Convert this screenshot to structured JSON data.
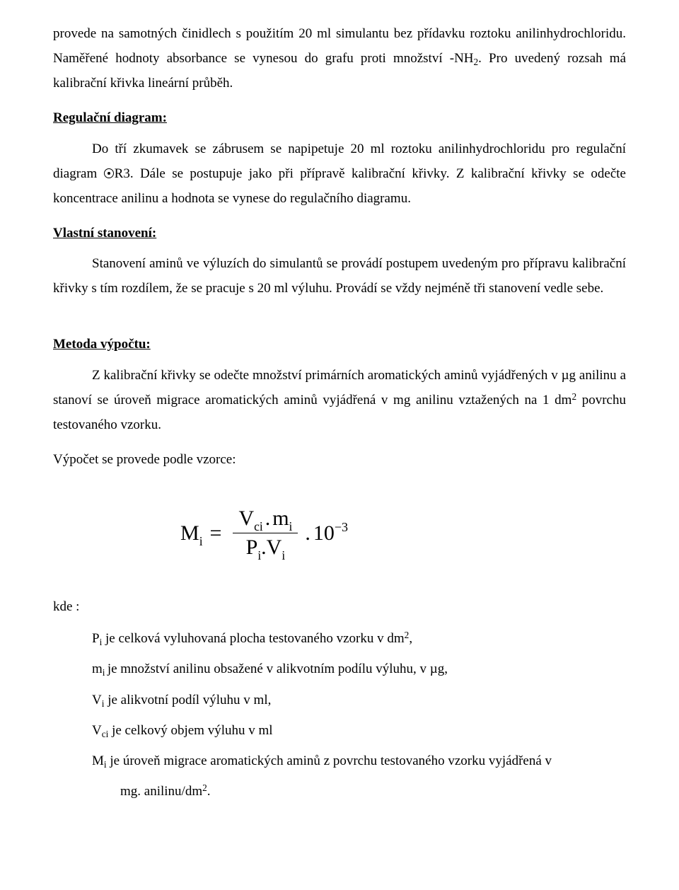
{
  "p1": "provede na samotných činidlech s použitím 20 ml simulantu bez přídavku roztoku anilinhydrochloridu. Naměřené hodnoty absorbance se vynesou do grafu proti množství -NH",
  "p1_tail": ". Pro uvedený rozsah má kalibrační křivka lineární průběh.",
  "p1_sub": "2",
  "h1": "Regulační diagram:",
  "p2a": "Do tří zkumavek se zábrusem se napipetuje 20 ml roztoku anilinhydrochloridu pro regulační diagram ",
  "p2b": "R3. Dále se postupuje jako při přípravě kalibrační křivky. Z kalibrační křivky se odečte koncentrace anilinu a hodnota se vynese do regulačního diagramu.",
  "h2": "Vlastní stanovení:",
  "p3": "Stanovení aminů ve výluzích do simulantů se provádí postupem uvedeným pro přípravu kalibrační křivky s tím rozdílem, že se pracuje s 20 ml výluhu. Provádí se vždy nejméně tři stanovení vedle sebe.",
  "h3": "Metoda výpočtu:",
  "p4a": "Z kalibrační křivky se odečte množství primárních aromatických aminů vyjádřených v µg anilinu a stanoví se úroveň migrace aromatických aminů vyjádřená v mg anilinu vztažených na 1 dm",
  "p4_sup": "2",
  "p4b": " povrchu testovaného vzorku.",
  "p5": "Výpočet  se provede podle vzorce:",
  "formula": {
    "M": "M",
    "Mi": "i",
    "eq": "=",
    "Vci": "V",
    "Vci_sub": "ci",
    "dot": ".",
    "mi": "m",
    "mi_sub": "i",
    "Pi": "P",
    "Pi_sub": "i",
    "Vi": "V",
    "Vi_sub": "i",
    "ten": "10",
    "exp": "−3"
  },
  "kde": "kde :",
  "leg1a": "P",
  "leg1s": "i",
  "leg1b": " je celková vyluhovaná plocha testovaného vzorku v dm",
  "leg1sup": "2",
  "leg1c": ",",
  "leg2a": "m",
  "leg2s": "i ",
  "leg2b": "je množství anilinu obsažené v alikvotním podílu výluhu, v µg,",
  "leg3a": "V",
  "leg3s": "i",
  "leg3b": " je alikvotní podíl výluhu v ml,",
  "leg4a": "V",
  "leg4s": "ci",
  "leg4b": " je celkový objem výluhu v ml",
  "leg5a": "M",
  "leg5s": "i",
  "leg5b": " je úroveň migrace aromatických aminů z povrchu testovaného vzorku vyjádřená v",
  "leg5c": "mg. anilinu/dm",
  "leg5sup": "2",
  "leg5d": "."
}
